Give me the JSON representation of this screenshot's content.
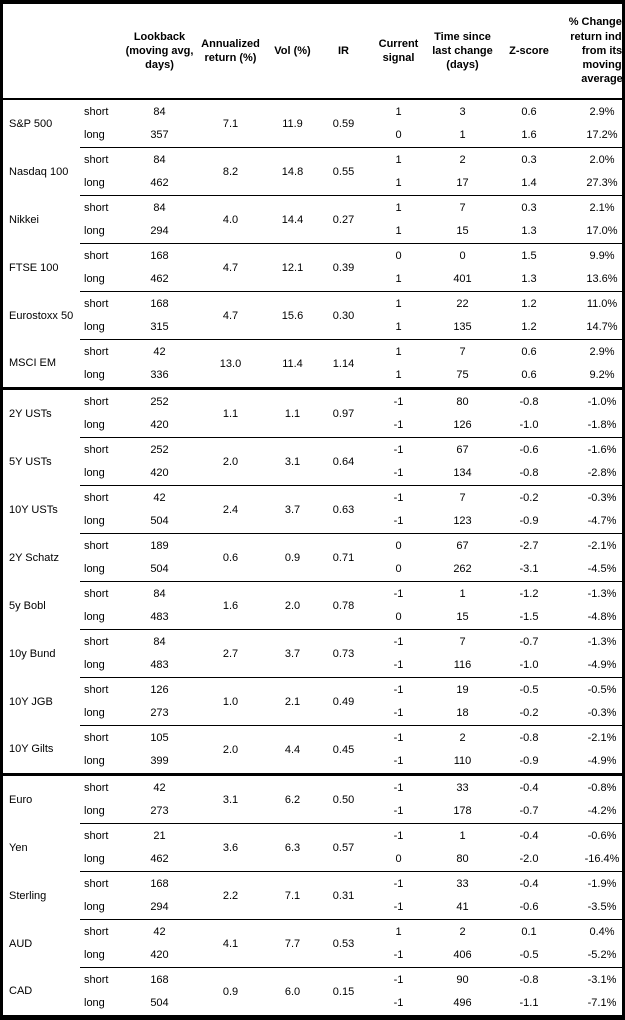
{
  "table": {
    "headers": [
      {
        "id": "asset",
        "label": ""
      },
      {
        "id": "horizon",
        "label": ""
      },
      {
        "id": "lookback",
        "label": "Lookback (moving avg, days)"
      },
      {
        "id": "annualized_return",
        "label": "Annualized return (%)"
      },
      {
        "id": "vol",
        "label": "Vol (%)"
      },
      {
        "id": "ir",
        "label": "IR"
      },
      {
        "id": "current_signal",
        "label": "Current signal"
      },
      {
        "id": "time_since",
        "label": "Time since last change (days)"
      },
      {
        "id": "zscore",
        "label": "Z-score"
      },
      {
        "id": "pct_change",
        "label": "% Change of return index from its moving average"
      }
    ],
    "row_labels": {
      "short": "short",
      "long": "long"
    },
    "groups": [
      {
        "asset": "S&P 500",
        "section": "equities",
        "section_start": false,
        "annualized_return": "7.1",
        "vol": "11.9",
        "ir": "0.59",
        "short": {
          "lookback": "84",
          "signal": "1",
          "time": "3",
          "zscore": "0.6",
          "pct": "2.9%"
        },
        "long": {
          "lookback": "357",
          "signal": "0",
          "time": "1",
          "zscore": "1.6",
          "pct": "17.2%"
        }
      },
      {
        "asset": "Nasdaq 100",
        "section": "equities",
        "section_start": false,
        "annualized_return": "8.2",
        "vol": "14.8",
        "ir": "0.55",
        "short": {
          "lookback": "84",
          "signal": "1",
          "time": "2",
          "zscore": "0.3",
          "pct": "2.0%"
        },
        "long": {
          "lookback": "462",
          "signal": "1",
          "time": "17",
          "zscore": "1.4",
          "pct": "27.3%"
        }
      },
      {
        "asset": "Nikkei",
        "section": "equities",
        "section_start": false,
        "annualized_return": "4.0",
        "vol": "14.4",
        "ir": "0.27",
        "short": {
          "lookback": "84",
          "signal": "1",
          "time": "7",
          "zscore": "0.3",
          "pct": "2.1%"
        },
        "long": {
          "lookback": "294",
          "signal": "1",
          "time": "15",
          "zscore": "1.3",
          "pct": "17.0%"
        }
      },
      {
        "asset": "FTSE 100",
        "section": "equities",
        "section_start": false,
        "annualized_return": "4.7",
        "vol": "12.1",
        "ir": "0.39",
        "short": {
          "lookback": "168",
          "signal": "0",
          "time": "0",
          "zscore": "1.5",
          "pct": "9.9%"
        },
        "long": {
          "lookback": "462",
          "signal": "1",
          "time": "401",
          "zscore": "1.3",
          "pct": "13.6%"
        }
      },
      {
        "asset": "Eurostoxx 50",
        "section": "equities",
        "section_start": false,
        "annualized_return": "4.7",
        "vol": "15.6",
        "ir": "0.30",
        "short": {
          "lookback": "168",
          "signal": "1",
          "time": "22",
          "zscore": "1.2",
          "pct": "11.0%"
        },
        "long": {
          "lookback": "315",
          "signal": "1",
          "time": "135",
          "zscore": "1.2",
          "pct": "14.7%"
        }
      },
      {
        "asset": "MSCI EM",
        "section": "equities",
        "section_start": false,
        "annualized_return": "13.0",
        "vol": "11.4",
        "ir": "1.14",
        "short": {
          "lookback": "42",
          "signal": "1",
          "time": "7",
          "zscore": "0.6",
          "pct": "2.9%"
        },
        "long": {
          "lookback": "336",
          "signal": "1",
          "time": "75",
          "zscore": "0.6",
          "pct": "9.2%"
        }
      },
      {
        "asset": "2Y USTs",
        "section": "rates",
        "section_start": true,
        "annualized_return": "1.1",
        "vol": "1.1",
        "ir": "0.97",
        "short": {
          "lookback": "252",
          "signal": "-1",
          "time": "80",
          "zscore": "-0.8",
          "pct": "-1.0%"
        },
        "long": {
          "lookback": "420",
          "signal": "-1",
          "time": "126",
          "zscore": "-1.0",
          "pct": "-1.8%"
        }
      },
      {
        "asset": "5Y USTs",
        "section": "rates",
        "section_start": false,
        "annualized_return": "2.0",
        "vol": "3.1",
        "ir": "0.64",
        "short": {
          "lookback": "252",
          "signal": "-1",
          "time": "67",
          "zscore": "-0.6",
          "pct": "-1.6%"
        },
        "long": {
          "lookback": "420",
          "signal": "-1",
          "time": "134",
          "zscore": "-0.8",
          "pct": "-2.8%"
        }
      },
      {
        "asset": "10Y USTs",
        "section": "rates",
        "section_start": false,
        "annualized_return": "2.4",
        "vol": "3.7",
        "ir": "0.63",
        "short": {
          "lookback": "42",
          "signal": "-1",
          "time": "7",
          "zscore": "-0.2",
          "pct": "-0.3%"
        },
        "long": {
          "lookback": "504",
          "signal": "-1",
          "time": "123",
          "zscore": "-0.9",
          "pct": "-4.7%"
        }
      },
      {
        "asset": "2Y Schatz",
        "section": "rates",
        "section_start": false,
        "annualized_return": "0.6",
        "vol": "0.9",
        "ir": "0.71",
        "short": {
          "lookback": "189",
          "signal": "0",
          "time": "67",
          "zscore": "-2.7",
          "pct": "-2.1%"
        },
        "long": {
          "lookback": "504",
          "signal": "0",
          "time": "262",
          "zscore": "-3.1",
          "pct": "-4.5%"
        }
      },
      {
        "asset": "5y Bobl",
        "section": "rates",
        "section_start": false,
        "annualized_return": "1.6",
        "vol": "2.0",
        "ir": "0.78",
        "short": {
          "lookback": "84",
          "signal": "-1",
          "time": "1",
          "zscore": "-1.2",
          "pct": "-1.3%"
        },
        "long": {
          "lookback": "483",
          "signal": "0",
          "time": "15",
          "zscore": "-1.5",
          "pct": "-4.8%"
        }
      },
      {
        "asset": "10y Bund",
        "section": "rates",
        "section_start": false,
        "annualized_return": "2.7",
        "vol": "3.7",
        "ir": "0.73",
        "short": {
          "lookback": "84",
          "signal": "-1",
          "time": "7",
          "zscore": "-0.7",
          "pct": "-1.3%"
        },
        "long": {
          "lookback": "483",
          "signal": "-1",
          "time": "116",
          "zscore": "-1.0",
          "pct": "-4.9%"
        }
      },
      {
        "asset": "10Y JGB",
        "section": "rates",
        "section_start": false,
        "annualized_return": "1.0",
        "vol": "2.1",
        "ir": "0.49",
        "short": {
          "lookback": "126",
          "signal": "-1",
          "time": "19",
          "zscore": "-0.5",
          "pct": "-0.5%"
        },
        "long": {
          "lookback": "273",
          "signal": "-1",
          "time": "18",
          "zscore": "-0.2",
          "pct": "-0.3%"
        }
      },
      {
        "asset": "10Y Gilts",
        "section": "rates",
        "section_start": false,
        "annualized_return": "2.0",
        "vol": "4.4",
        "ir": "0.45",
        "short": {
          "lookback": "105",
          "signal": "-1",
          "time": "2",
          "zscore": "-0.8",
          "pct": "-2.1%"
        },
        "long": {
          "lookback": "399",
          "signal": "-1",
          "time": "110",
          "zscore": "-0.9",
          "pct": "-4.9%"
        }
      },
      {
        "asset": "Euro",
        "section": "fx",
        "section_start": true,
        "annualized_return": "3.1",
        "vol": "6.2",
        "ir": "0.50",
        "short": {
          "lookback": "42",
          "signal": "-1",
          "time": "33",
          "zscore": "-0.4",
          "pct": "-0.8%"
        },
        "long": {
          "lookback": "273",
          "signal": "-1",
          "time": "178",
          "zscore": "-0.7",
          "pct": "-4.2%"
        }
      },
      {
        "asset": "Yen",
        "section": "fx",
        "section_start": false,
        "annualized_return": "3.6",
        "vol": "6.3",
        "ir": "0.57",
        "short": {
          "lookback": "21",
          "signal": "-1",
          "time": "1",
          "zscore": "-0.4",
          "pct": "-0.6%"
        },
        "long": {
          "lookback": "462",
          "signal": "0",
          "time": "80",
          "zscore": "-2.0",
          "pct": "-16.4%"
        }
      },
      {
        "asset": "Sterling",
        "section": "fx",
        "section_start": false,
        "annualized_return": "2.2",
        "vol": "7.1",
        "ir": "0.31",
        "short": {
          "lookback": "168",
          "signal": "-1",
          "time": "33",
          "zscore": "-0.4",
          "pct": "-1.9%"
        },
        "long": {
          "lookback": "294",
          "signal": "-1",
          "time": "41",
          "zscore": "-0.6",
          "pct": "-3.5%"
        }
      },
      {
        "asset": "AUD",
        "section": "fx",
        "section_start": false,
        "annualized_return": "4.1",
        "vol": "7.7",
        "ir": "0.53",
        "short": {
          "lookback": "42",
          "signal": "1",
          "time": "2",
          "zscore": "0.1",
          "pct": "0.4%"
        },
        "long": {
          "lookback": "420",
          "signal": "-1",
          "time": "406",
          "zscore": "-0.5",
          "pct": "-5.2%"
        }
      },
      {
        "asset": "CAD",
        "section": "fx",
        "section_start": false,
        "annualized_return": "0.9",
        "vol": "6.0",
        "ir": "0.15",
        "short": {
          "lookback": "168",
          "signal": "-1",
          "time": "90",
          "zscore": "-0.8",
          "pct": "-3.1%"
        },
        "long": {
          "lookback": "504",
          "signal": "-1",
          "time": "496",
          "zscore": "-1.1",
          "pct": "-7.1%"
        }
      }
    ]
  },
  "colors": {
    "text": "#000000",
    "border": "#000000",
    "background": "#ffffff"
  }
}
